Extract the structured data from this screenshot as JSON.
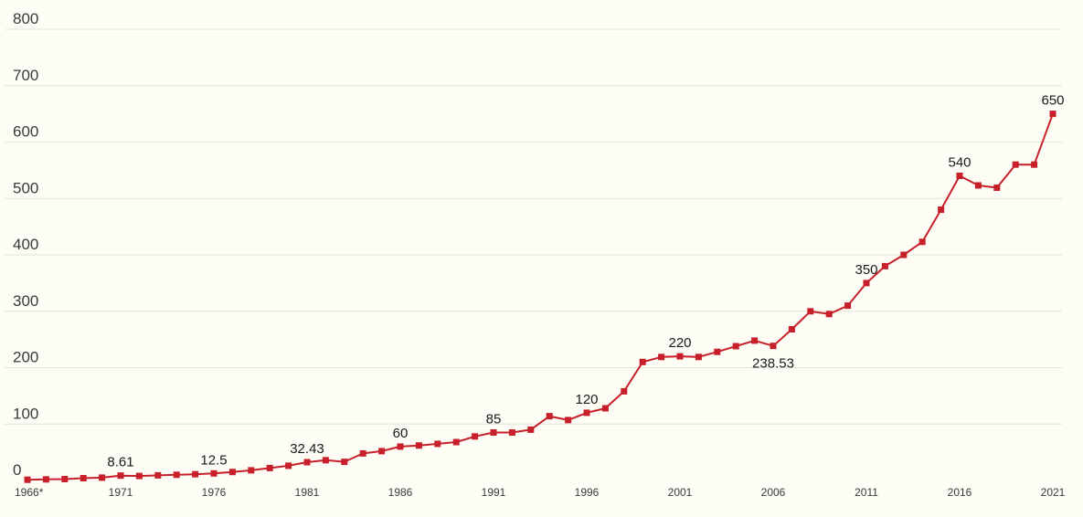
{
  "chart_data": {
    "type": "line",
    "title": "",
    "xlabel": "",
    "ylabel": "",
    "ylim": [
      0,
      800
    ],
    "y_ticks": [
      0,
      100,
      200,
      300,
      400,
      500,
      600,
      700,
      800
    ],
    "x_tick_labels": [
      "1966*",
      "1971",
      "1976",
      "1981",
      "1986",
      "1991",
      "1996",
      "2001",
      "2006",
      "2011",
      "2016",
      "2021"
    ],
    "grid": true,
    "legend": "none",
    "colors": {
      "line": "#c8202a",
      "marker": "#c8202a",
      "grid": "#e4e4da",
      "background": "#fdfdf6"
    },
    "x": [
      1966,
      1967,
      1968,
      1969,
      1970,
      1971,
      1972,
      1973,
      1974,
      1975,
      1976,
      1977,
      1978,
      1979,
      1980,
      1981,
      1982,
      1983,
      1984,
      1985,
      1986,
      1987,
      1988,
      1989,
      1990,
      1991,
      1992,
      1993,
      1994,
      1995,
      1996,
      1997,
      1998,
      1999,
      2000,
      2001,
      2002,
      2003,
      2004,
      2005,
      2006,
      2007,
      2008,
      2009,
      2010,
      2011,
      2012,
      2013,
      2014,
      2015,
      2016,
      2017,
      2018,
      2019,
      2020,
      2021
    ],
    "values": [
      1.25,
      2,
      2.5,
      4,
      5,
      8.61,
      8,
      9,
      10,
      11,
      12.5,
      15,
      18,
      22,
      26,
      32.43,
      36,
      33,
      48,
      52,
      60,
      62,
      65,
      68,
      78,
      85,
      85,
      90,
      114,
      107,
      120,
      128,
      158,
      210,
      219,
      220,
      219,
      228,
      238,
      248,
      238.53,
      268,
      300,
      295,
      310,
      350,
      380,
      400,
      423,
      480,
      540,
      523,
      519,
      560,
      560,
      650
    ],
    "data_labels": [
      {
        "x": 1971,
        "text": "8.61",
        "position": "above"
      },
      {
        "x": 1976,
        "text": "12.5",
        "position": "above"
      },
      {
        "x": 1981,
        "text": "32.43",
        "position": "above"
      },
      {
        "x": 1986,
        "text": "60",
        "position": "above"
      },
      {
        "x": 1991,
        "text": "85",
        "position": "above"
      },
      {
        "x": 1996,
        "text": "120",
        "position": "above"
      },
      {
        "x": 2001,
        "text": "220",
        "position": "above"
      },
      {
        "x": 2006,
        "text": "238.53",
        "position": "below"
      },
      {
        "x": 2011,
        "text": "350",
        "position": "above"
      },
      {
        "x": 2016,
        "text": "540",
        "position": "above"
      },
      {
        "x": 2021,
        "text": "650",
        "position": "above"
      }
    ]
  }
}
